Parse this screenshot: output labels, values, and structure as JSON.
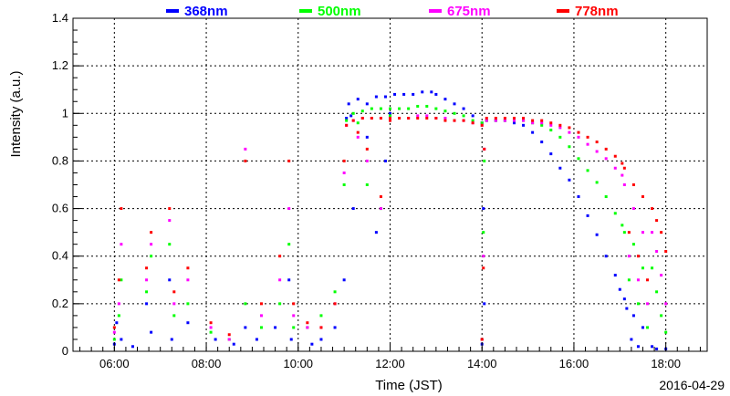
{
  "chart_data": {
    "type": "scatter",
    "xlabel": "Time (JST)",
    "ylabel": "Intensity (a.u.)",
    "date": "2016-04-29",
    "xlim": [
      5.1,
      18.9
    ],
    "ylim": [
      0,
      1.4
    ],
    "grid": true,
    "legend_position": "top",
    "x_ticks": [
      {
        "value": 6,
        "label": "06:00"
      },
      {
        "value": 8,
        "label": "08:00"
      },
      {
        "value": 10,
        "label": "10:00"
      },
      {
        "value": 12,
        "label": "12:00"
      },
      {
        "value": 14,
        "label": "14:00"
      },
      {
        "value": 16,
        "label": "16:00"
      },
      {
        "value": 18,
        "label": "18:00"
      }
    ],
    "y_ticks": [
      {
        "value": 0,
        "label": "0"
      },
      {
        "value": 0.2,
        "label": "0.2"
      },
      {
        "value": 0.4,
        "label": "0.4"
      },
      {
        "value": 0.6,
        "label": "0.6"
      },
      {
        "value": 0.8,
        "label": "0.8"
      },
      {
        "value": 1.0,
        "label": "1"
      },
      {
        "value": 1.2,
        "label": "1.2"
      },
      {
        "value": 1.4,
        "label": "1.4"
      }
    ],
    "series": [
      {
        "name": "368nm",
        "color": "#0000ff",
        "points": [
          [
            6.0,
            0.03
          ],
          [
            6.05,
            0.12
          ],
          [
            6.15,
            0.05
          ],
          [
            6.4,
            0.02
          ],
          [
            6.7,
            0.2
          ],
          [
            6.8,
            0.08
          ],
          [
            7.2,
            0.3
          ],
          [
            7.25,
            0.05
          ],
          [
            7.6,
            0.12
          ],
          [
            8.2,
            0.05
          ],
          [
            8.6,
            0.03
          ],
          [
            8.85,
            0.1
          ],
          [
            9.1,
            0.05
          ],
          [
            9.5,
            0.1
          ],
          [
            9.8,
            0.3
          ],
          [
            9.85,
            0.05
          ],
          [
            10.3,
            0.03
          ],
          [
            10.5,
            0.05
          ],
          [
            10.8,
            0.1
          ],
          [
            11.0,
            0.3
          ],
          [
            11.05,
            0.98
          ],
          [
            11.15,
            0.99
          ],
          [
            11.2,
            0.6
          ],
          [
            11.5,
            0.9
          ],
          [
            11.7,
            0.5
          ],
          [
            11.9,
            0.8
          ],
          [
            12.0,
            1.0
          ],
          [
            11.1,
            1.04
          ],
          [
            11.3,
            1.06
          ],
          [
            11.5,
            1.04
          ],
          [
            11.7,
            1.07
          ],
          [
            11.9,
            1.07
          ],
          [
            12.1,
            1.08
          ],
          [
            12.3,
            1.08
          ],
          [
            12.5,
            1.08
          ],
          [
            12.7,
            1.09
          ],
          [
            12.9,
            1.09
          ],
          [
            13.0,
            1.08
          ],
          [
            13.2,
            1.06
          ],
          [
            13.4,
            1.04
          ],
          [
            13.6,
            1.02
          ],
          [
            13.8,
            0.99
          ],
          [
            14.0,
            0.96
          ],
          [
            14.0,
            0.03
          ],
          [
            14.03,
            0.6
          ],
          [
            14.05,
            0.2
          ],
          [
            14.1,
            0.97
          ],
          [
            14.3,
            0.97
          ],
          [
            14.5,
            0.97
          ],
          [
            14.7,
            0.96
          ],
          [
            14.9,
            0.95
          ],
          [
            15.1,
            0.92
          ],
          [
            15.3,
            0.88
          ],
          [
            15.5,
            0.83
          ],
          [
            15.7,
            0.77
          ],
          [
            15.9,
            0.72
          ],
          [
            16.1,
            0.65
          ],
          [
            16.3,
            0.57
          ],
          [
            16.5,
            0.49
          ],
          [
            16.7,
            0.4
          ],
          [
            16.9,
            0.32
          ],
          [
            17.0,
            0.26
          ],
          [
            17.1,
            0.22
          ],
          [
            17.15,
            0.18
          ],
          [
            17.25,
            0.05
          ],
          [
            17.3,
            0.15
          ],
          [
            17.4,
            0.02
          ],
          [
            17.5,
            0.1
          ],
          [
            17.7,
            0.02
          ],
          [
            17.8,
            0.01
          ],
          [
            18.0,
            0.01
          ]
        ]
      },
      {
        "name": "500nm",
        "color": "#00ff00",
        "points": [
          [
            6.0,
            0.05
          ],
          [
            6.1,
            0.15
          ],
          [
            6.15,
            0.3
          ],
          [
            6.7,
            0.25
          ],
          [
            6.8,
            0.4
          ],
          [
            7.2,
            0.45
          ],
          [
            7.3,
            0.15
          ],
          [
            7.6,
            0.2
          ],
          [
            8.1,
            0.08
          ],
          [
            8.5,
            0.05
          ],
          [
            8.85,
            0.2
          ],
          [
            9.2,
            0.1
          ],
          [
            9.6,
            0.2
          ],
          [
            9.8,
            0.45
          ],
          [
            9.9,
            0.1
          ],
          [
            10.2,
            0.1
          ],
          [
            10.5,
            0.15
          ],
          [
            10.8,
            0.25
          ],
          [
            11.0,
            0.7
          ],
          [
            11.05,
            0.97
          ],
          [
            11.3,
            0.96
          ],
          [
            11.5,
            0.7
          ],
          [
            11.8,
            0.6
          ],
          [
            12.0,
            0.99
          ],
          [
            11.2,
            1.0
          ],
          [
            11.4,
            1.01
          ],
          [
            11.6,
            1.02
          ],
          [
            11.8,
            1.02
          ],
          [
            12.0,
            1.02
          ],
          [
            12.2,
            1.02
          ],
          [
            12.4,
            1.02
          ],
          [
            12.6,
            1.03
          ],
          [
            12.8,
            1.03
          ],
          [
            13.0,
            1.02
          ],
          [
            13.2,
            1.01
          ],
          [
            13.4,
            1.0
          ],
          [
            13.6,
            0.99
          ],
          [
            13.8,
            0.97
          ],
          [
            14.0,
            0.96
          ],
          [
            14.0,
            0.05
          ],
          [
            14.03,
            0.5
          ],
          [
            14.05,
            0.8
          ],
          [
            14.1,
            0.97
          ],
          [
            14.3,
            0.97
          ],
          [
            14.5,
            0.97
          ],
          [
            14.7,
            0.97
          ],
          [
            14.9,
            0.97
          ],
          [
            15.1,
            0.96
          ],
          [
            15.3,
            0.95
          ],
          [
            15.5,
            0.93
          ],
          [
            15.7,
            0.9
          ],
          [
            15.9,
            0.86
          ],
          [
            16.1,
            0.81
          ],
          [
            16.3,
            0.76
          ],
          [
            16.5,
            0.71
          ],
          [
            16.7,
            0.65
          ],
          [
            16.9,
            0.58
          ],
          [
            17.05,
            0.53
          ],
          [
            17.1,
            0.5
          ],
          [
            17.2,
            0.3
          ],
          [
            17.3,
            0.45
          ],
          [
            17.4,
            0.2
          ],
          [
            17.5,
            0.35
          ],
          [
            17.6,
            0.1
          ],
          [
            17.7,
            0.35
          ],
          [
            17.8,
            0.25
          ],
          [
            17.9,
            0.15
          ],
          [
            18.0,
            0.08
          ]
        ]
      },
      {
        "name": "675nm",
        "color": "#ff00ff",
        "points": [
          [
            6.0,
            0.08
          ],
          [
            6.1,
            0.2
          ],
          [
            6.15,
            0.45
          ],
          [
            6.7,
            0.3
          ],
          [
            6.8,
            0.45
          ],
          [
            7.2,
            0.55
          ],
          [
            7.3,
            0.2
          ],
          [
            7.6,
            0.3
          ],
          [
            8.1,
            0.1
          ],
          [
            8.5,
            0.05
          ],
          [
            8.85,
            0.85
          ],
          [
            9.2,
            0.15
          ],
          [
            9.6,
            0.3
          ],
          [
            9.8,
            0.6
          ],
          [
            9.9,
            0.15
          ],
          [
            10.2,
            0.1
          ],
          [
            10.5,
            0.1
          ],
          [
            10.8,
            0.2
          ],
          [
            11.0,
            0.75
          ],
          [
            11.05,
            0.95
          ],
          [
            11.3,
            0.9
          ],
          [
            11.5,
            0.8
          ],
          [
            11.8,
            0.6
          ],
          [
            12.0,
            0.97
          ],
          [
            11.2,
            0.97
          ],
          [
            11.4,
            0.98
          ],
          [
            11.6,
            0.98
          ],
          [
            11.8,
            0.98
          ],
          [
            12.0,
            0.98
          ],
          [
            12.2,
            0.98
          ],
          [
            12.4,
            0.98
          ],
          [
            12.6,
            0.99
          ],
          [
            12.8,
            0.99
          ],
          [
            13.0,
            0.98
          ],
          [
            13.2,
            0.98
          ],
          [
            13.4,
            0.97
          ],
          [
            13.6,
            0.97
          ],
          [
            13.8,
            0.96
          ],
          [
            14.0,
            0.95
          ],
          [
            14.0,
            0.05
          ],
          [
            14.03,
            0.4
          ],
          [
            14.05,
            0.85
          ],
          [
            14.1,
            0.97
          ],
          [
            14.3,
            0.97
          ],
          [
            14.5,
            0.97
          ],
          [
            14.7,
            0.97
          ],
          [
            14.9,
            0.97
          ],
          [
            15.1,
            0.96
          ],
          [
            15.3,
            0.96
          ],
          [
            15.5,
            0.95
          ],
          [
            15.7,
            0.94
          ],
          [
            15.9,
            0.92
          ],
          [
            16.1,
            0.9
          ],
          [
            16.3,
            0.87
          ],
          [
            16.5,
            0.84
          ],
          [
            16.7,
            0.81
          ],
          [
            16.9,
            0.77
          ],
          [
            17.05,
            0.74
          ],
          [
            17.1,
            0.7
          ],
          [
            17.2,
            0.4
          ],
          [
            17.3,
            0.6
          ],
          [
            17.4,
            0.3
          ],
          [
            17.5,
            0.5
          ],
          [
            17.6,
            0.2
          ],
          [
            17.7,
            0.5
          ],
          [
            17.8,
            0.42
          ],
          [
            17.9,
            0.32
          ],
          [
            18.0,
            0.2
          ]
        ]
      },
      {
        "name": "778nm",
        "color": "#ff0000",
        "points": [
          [
            6.0,
            0.1
          ],
          [
            6.1,
            0.3
          ],
          [
            6.15,
            0.6
          ],
          [
            6.7,
            0.35
          ],
          [
            6.8,
            0.5
          ],
          [
            7.2,
            0.6
          ],
          [
            7.3,
            0.25
          ],
          [
            7.6,
            0.35
          ],
          [
            8.1,
            0.12
          ],
          [
            8.5,
            0.07
          ],
          [
            8.85,
            0.8
          ],
          [
            9.2,
            0.2
          ],
          [
            9.6,
            0.4
          ],
          [
            9.8,
            0.8
          ],
          [
            9.9,
            0.2
          ],
          [
            10.2,
            0.12
          ],
          [
            10.5,
            0.1
          ],
          [
            10.8,
            0.2
          ],
          [
            11.0,
            0.8
          ],
          [
            11.05,
            0.95
          ],
          [
            11.3,
            0.92
          ],
          [
            11.5,
            0.85
          ],
          [
            11.8,
            0.65
          ],
          [
            12.0,
            0.97
          ],
          [
            11.2,
            0.97
          ],
          [
            11.4,
            0.98
          ],
          [
            11.6,
            0.98
          ],
          [
            11.8,
            0.98
          ],
          [
            12.0,
            0.98
          ],
          [
            12.2,
            0.98
          ],
          [
            12.4,
            0.98
          ],
          [
            12.6,
            0.98
          ],
          [
            12.8,
            0.98
          ],
          [
            13.0,
            0.98
          ],
          [
            13.2,
            0.97
          ],
          [
            13.4,
            0.97
          ],
          [
            13.6,
            0.97
          ],
          [
            13.8,
            0.96
          ],
          [
            14.0,
            0.95
          ],
          [
            14.0,
            0.05
          ],
          [
            14.03,
            0.35
          ],
          [
            14.05,
            0.85
          ],
          [
            14.1,
            0.98
          ],
          [
            14.3,
            0.98
          ],
          [
            14.5,
            0.98
          ],
          [
            14.7,
            0.98
          ],
          [
            14.9,
            0.98
          ],
          [
            15.1,
            0.97
          ],
          [
            15.3,
            0.97
          ],
          [
            15.5,
            0.96
          ],
          [
            15.7,
            0.95
          ],
          [
            15.9,
            0.94
          ],
          [
            16.1,
            0.92
          ],
          [
            16.3,
            0.9
          ],
          [
            16.5,
            0.88
          ],
          [
            16.7,
            0.85
          ],
          [
            16.9,
            0.82
          ],
          [
            17.05,
            0.79
          ],
          [
            17.1,
            0.77
          ],
          [
            17.2,
            0.5
          ],
          [
            17.3,
            0.7
          ],
          [
            17.4,
            0.4
          ],
          [
            17.5,
            0.65
          ],
          [
            17.6,
            0.3
          ],
          [
            17.7,
            0.6
          ],
          [
            17.8,
            0.55
          ],
          [
            17.9,
            0.5
          ],
          [
            18.0,
            0.42
          ]
        ]
      }
    ]
  }
}
